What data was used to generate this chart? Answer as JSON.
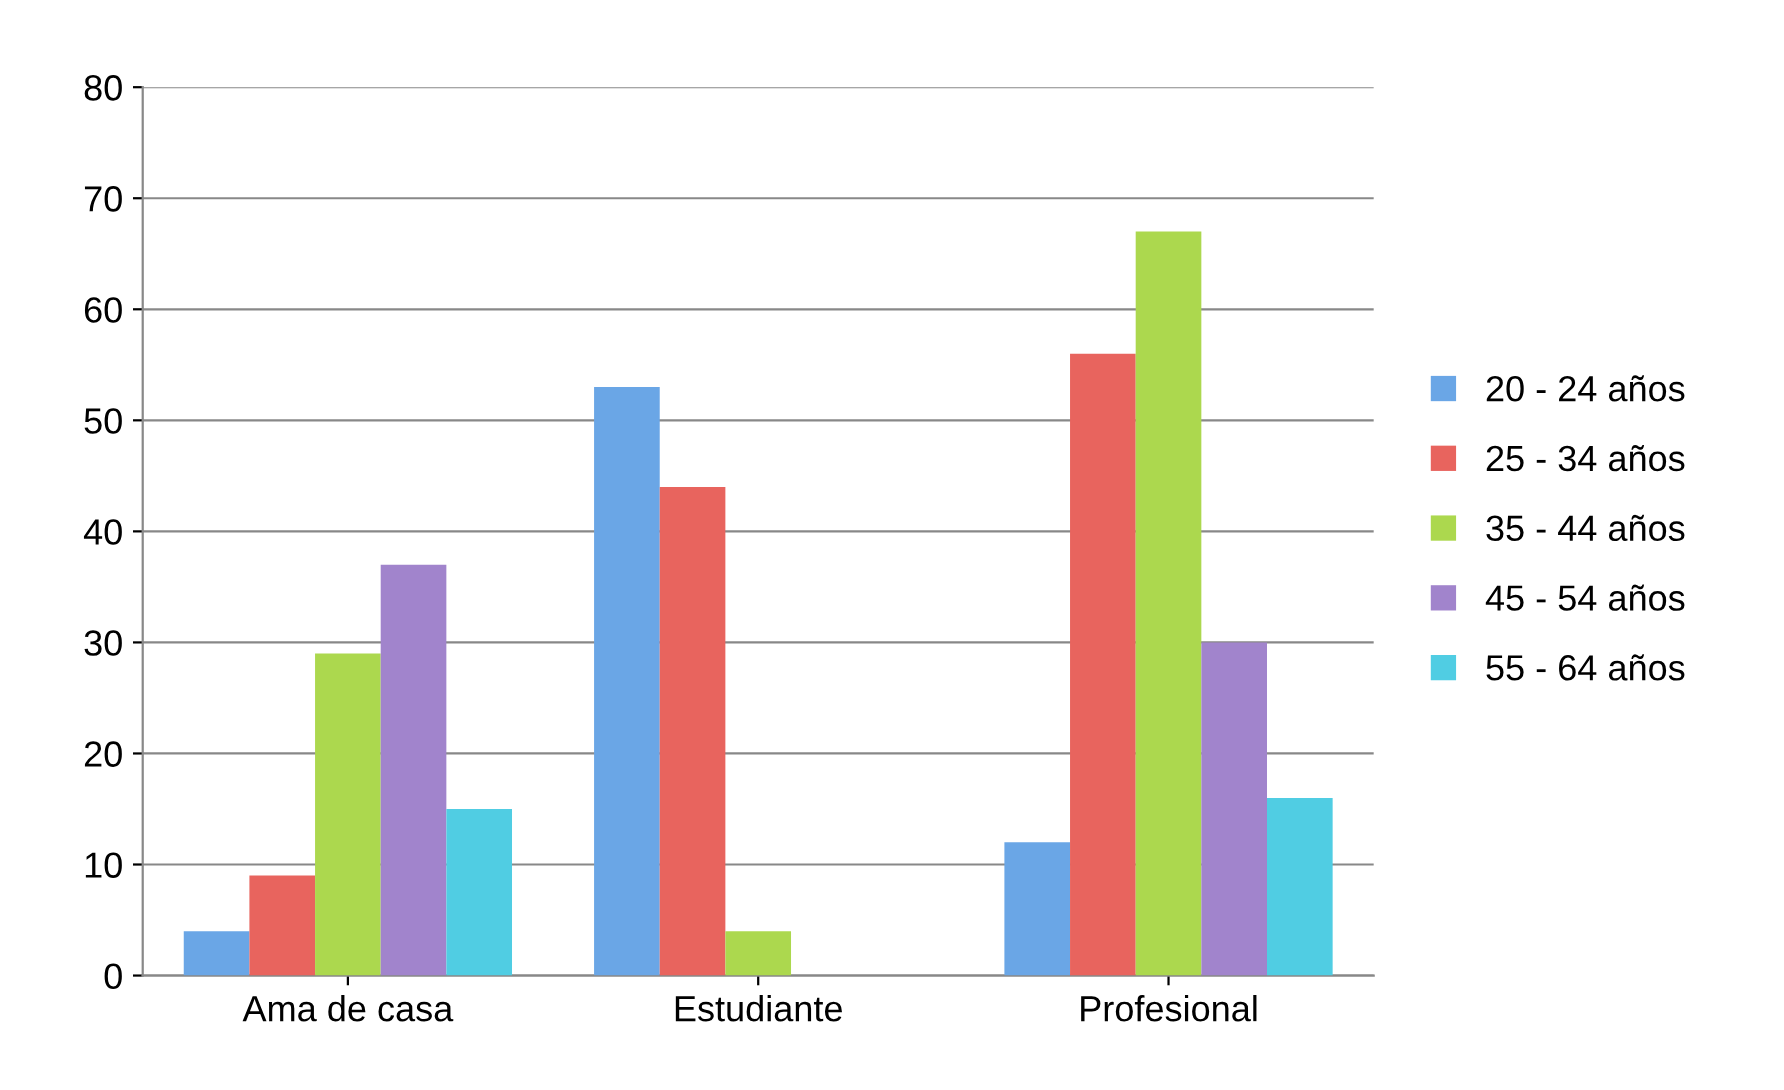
{
  "chart_data": {
    "type": "bar",
    "categories": [
      "Ama de casa",
      "Estudiante",
      "Profesional"
    ],
    "series": [
      {
        "name": "20 - 24 años",
        "color": "#6aa6e6",
        "values": [
          4,
          53,
          12
        ]
      },
      {
        "name": "25 - 34 años",
        "color": "#e8645e",
        "values": [
          9,
          44,
          56
        ]
      },
      {
        "name": "35 - 44 años",
        "color": "#acd84e",
        "values": [
          29,
          4,
          67
        ]
      },
      {
        "name": "45 - 54 años",
        "color": "#a184cc",
        "values": [
          37,
          null,
          30
        ]
      },
      {
        "name": "55 - 64 años",
        "color": "#50cde3",
        "values": [
          15,
          null,
          16
        ]
      }
    ],
    "ylim": [
      0,
      80
    ],
    "yticks": [
      0,
      10,
      20,
      30,
      40,
      50,
      60,
      70,
      80
    ],
    "grid": "y",
    "legend": "right"
  }
}
